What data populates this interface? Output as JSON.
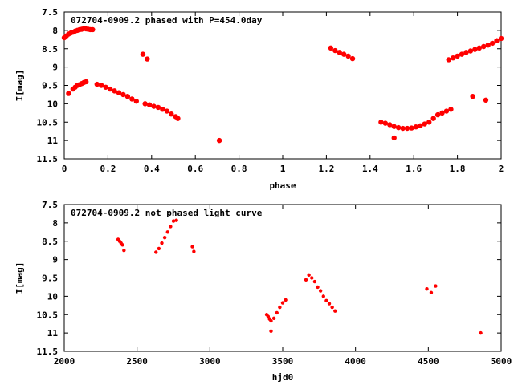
{
  "colors": {
    "points": "#ff0000",
    "axis": "#000000",
    "background": "#ffffff"
  },
  "chart_data": [
    {
      "type": "scatter",
      "title": "072704-0909.2 phased with P=454.0day",
      "xlabel": "phase",
      "ylabel": "I[mag]",
      "xlim": [
        0,
        2
      ],
      "ylim": [
        7.5,
        11.5
      ],
      "y_inverted": true,
      "grid": false,
      "xticks": [
        "0",
        "0.2",
        "0.4",
        "0.6",
        "0.8",
        "1",
        "1.2",
        "1.4",
        "1.6",
        "1.8",
        "2"
      ],
      "yticks": [
        "7.5",
        "8",
        "8.5",
        "9",
        "9.5",
        "10",
        "10.5",
        "11",
        "11.5"
      ],
      "x": [
        0.0,
        0.01,
        0.02,
        0.03,
        0.04,
        0.05,
        0.06,
        0.07,
        0.08,
        0.09,
        0.1,
        0.11,
        0.12,
        0.13,
        0.02,
        0.04,
        0.05,
        0.06,
        0.07,
        0.08,
        0.09,
        0.1,
        0.15,
        0.17,
        0.19,
        0.21,
        0.23,
        0.25,
        0.27,
        0.29,
        0.31,
        0.33,
        0.36,
        0.38,
        0.37,
        0.39,
        0.41,
        0.43,
        0.45,
        0.47,
        0.49,
        0.51,
        0.52,
        0.71,
        1.22,
        1.24,
        1.26,
        1.28,
        1.3,
        1.32,
        1.45,
        1.47,
        1.49,
        1.51,
        1.53,
        1.55,
        1.57,
        1.59,
        1.61,
        1.63,
        1.65,
        1.67,
        1.69,
        1.71,
        1.73,
        1.75,
        1.77,
        1.51,
        1.76,
        1.78,
        1.8,
        1.82,
        1.84,
        1.86,
        1.88,
        1.9,
        1.92,
        1.94,
        1.96,
        1.98,
        2.0,
        1.87,
        1.93
      ],
      "y": [
        8.2,
        8.15,
        8.1,
        8.07,
        8.05,
        8.02,
        8.0,
        7.98,
        7.97,
        7.95,
        7.96,
        7.97,
        7.98,
        7.98,
        9.72,
        9.6,
        9.55,
        9.5,
        9.48,
        9.45,
        9.42,
        9.4,
        9.47,
        9.5,
        9.55,
        9.6,
        9.65,
        9.7,
        9.75,
        9.8,
        9.87,
        9.93,
        8.65,
        8.78,
        10.0,
        10.03,
        10.07,
        10.1,
        10.15,
        10.2,
        10.28,
        10.35,
        10.4,
        11.0,
        8.48,
        8.55,
        8.6,
        8.65,
        8.7,
        8.77,
        10.5,
        10.53,
        10.57,
        10.62,
        10.65,
        10.67,
        10.67,
        10.66,
        10.63,
        10.6,
        10.55,
        10.5,
        10.4,
        10.3,
        10.25,
        10.2,
        10.15,
        10.93,
        8.8,
        8.75,
        8.7,
        8.65,
        8.6,
        8.56,
        8.52,
        8.48,
        8.44,
        8.4,
        8.35,
        8.28,
        8.22,
        9.8,
        9.9
      ]
    },
    {
      "type": "scatter",
      "title": "072704-0909.2 not phased light curve",
      "xlabel": "hjd0",
      "ylabel": "I[mag]",
      "xlim": [
        2000,
        5000
      ],
      "ylim": [
        7.5,
        11.5
      ],
      "y_inverted": true,
      "grid": false,
      "xticks": [
        "2000",
        "2500",
        "3000",
        "3500",
        "4000",
        "4500",
        "5000"
      ],
      "yticks": [
        "7.5",
        "8",
        "8.5",
        "9",
        "9.5",
        "10",
        "10.5",
        "11",
        "11.5"
      ],
      "x": [
        2370,
        2380,
        2390,
        2400,
        2410,
        2630,
        2650,
        2670,
        2690,
        2710,
        2730,
        2750,
        2770,
        2880,
        2890,
        3390,
        3400,
        3410,
        3420,
        3440,
        3460,
        3480,
        3500,
        3520,
        3420,
        3660,
        3680,
        3700,
        3720,
        3740,
        3760,
        3780,
        3800,
        3820,
        3840,
        3860,
        4490,
        4520,
        4550,
        4860
      ],
      "y": [
        8.45,
        8.5,
        8.55,
        8.6,
        8.75,
        8.8,
        8.7,
        8.55,
        8.4,
        8.25,
        8.1,
        7.95,
        7.93,
        8.65,
        8.78,
        10.5,
        10.55,
        10.62,
        10.67,
        10.6,
        10.45,
        10.3,
        10.18,
        10.1,
        10.95,
        9.55,
        9.42,
        9.5,
        9.6,
        9.75,
        9.85,
        10.0,
        10.12,
        10.2,
        10.3,
        10.4,
        9.8,
        9.9,
        9.72,
        11.0
      ]
    }
  ]
}
